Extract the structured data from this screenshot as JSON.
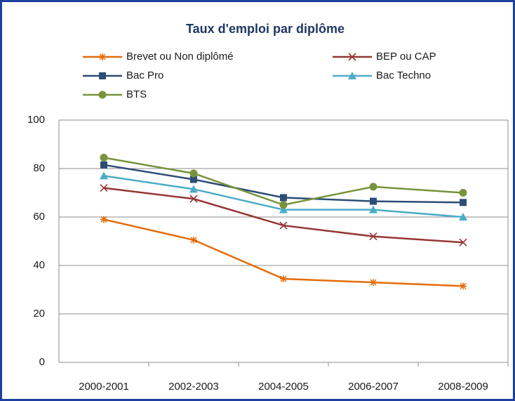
{
  "chart_data": {
    "type": "line",
    "title": "Taux d'emploi par diplôme",
    "categories": [
      "2000-2001",
      "2002-2003",
      "2004-2005",
      "2006-2007",
      "2008-2009"
    ],
    "series": [
      {
        "name": "Brevet ou Non diplômé",
        "color": "#e46c0a",
        "marker": "star",
        "values": [
          59,
          50.5,
          34.5,
          33,
          31.5
        ]
      },
      {
        "name": "BEP ou CAP",
        "color": "#953735",
        "marker": "x",
        "values": [
          72,
          67.5,
          56.5,
          52,
          49.5
        ]
      },
      {
        "name": "Bac Pro",
        "color": "#2c4d75",
        "marker": "square",
        "values": [
          81.5,
          75.5,
          68,
          66.5,
          66
        ]
      },
      {
        "name": "Bac Techno",
        "color": "#4bacc6",
        "marker": "triangle",
        "values": [
          77,
          71.5,
          63,
          63,
          60
        ]
      },
      {
        "name": "BTS",
        "color": "#77933c",
        "marker": "circle",
        "values": [
          84.5,
          78,
          65,
          72.5,
          70
        ]
      }
    ],
    "ylim": [
      0,
      100
    ],
    "yticks": [
      0,
      20,
      40,
      60,
      80,
      100
    ],
    "grid": true,
    "legend": "top"
  }
}
